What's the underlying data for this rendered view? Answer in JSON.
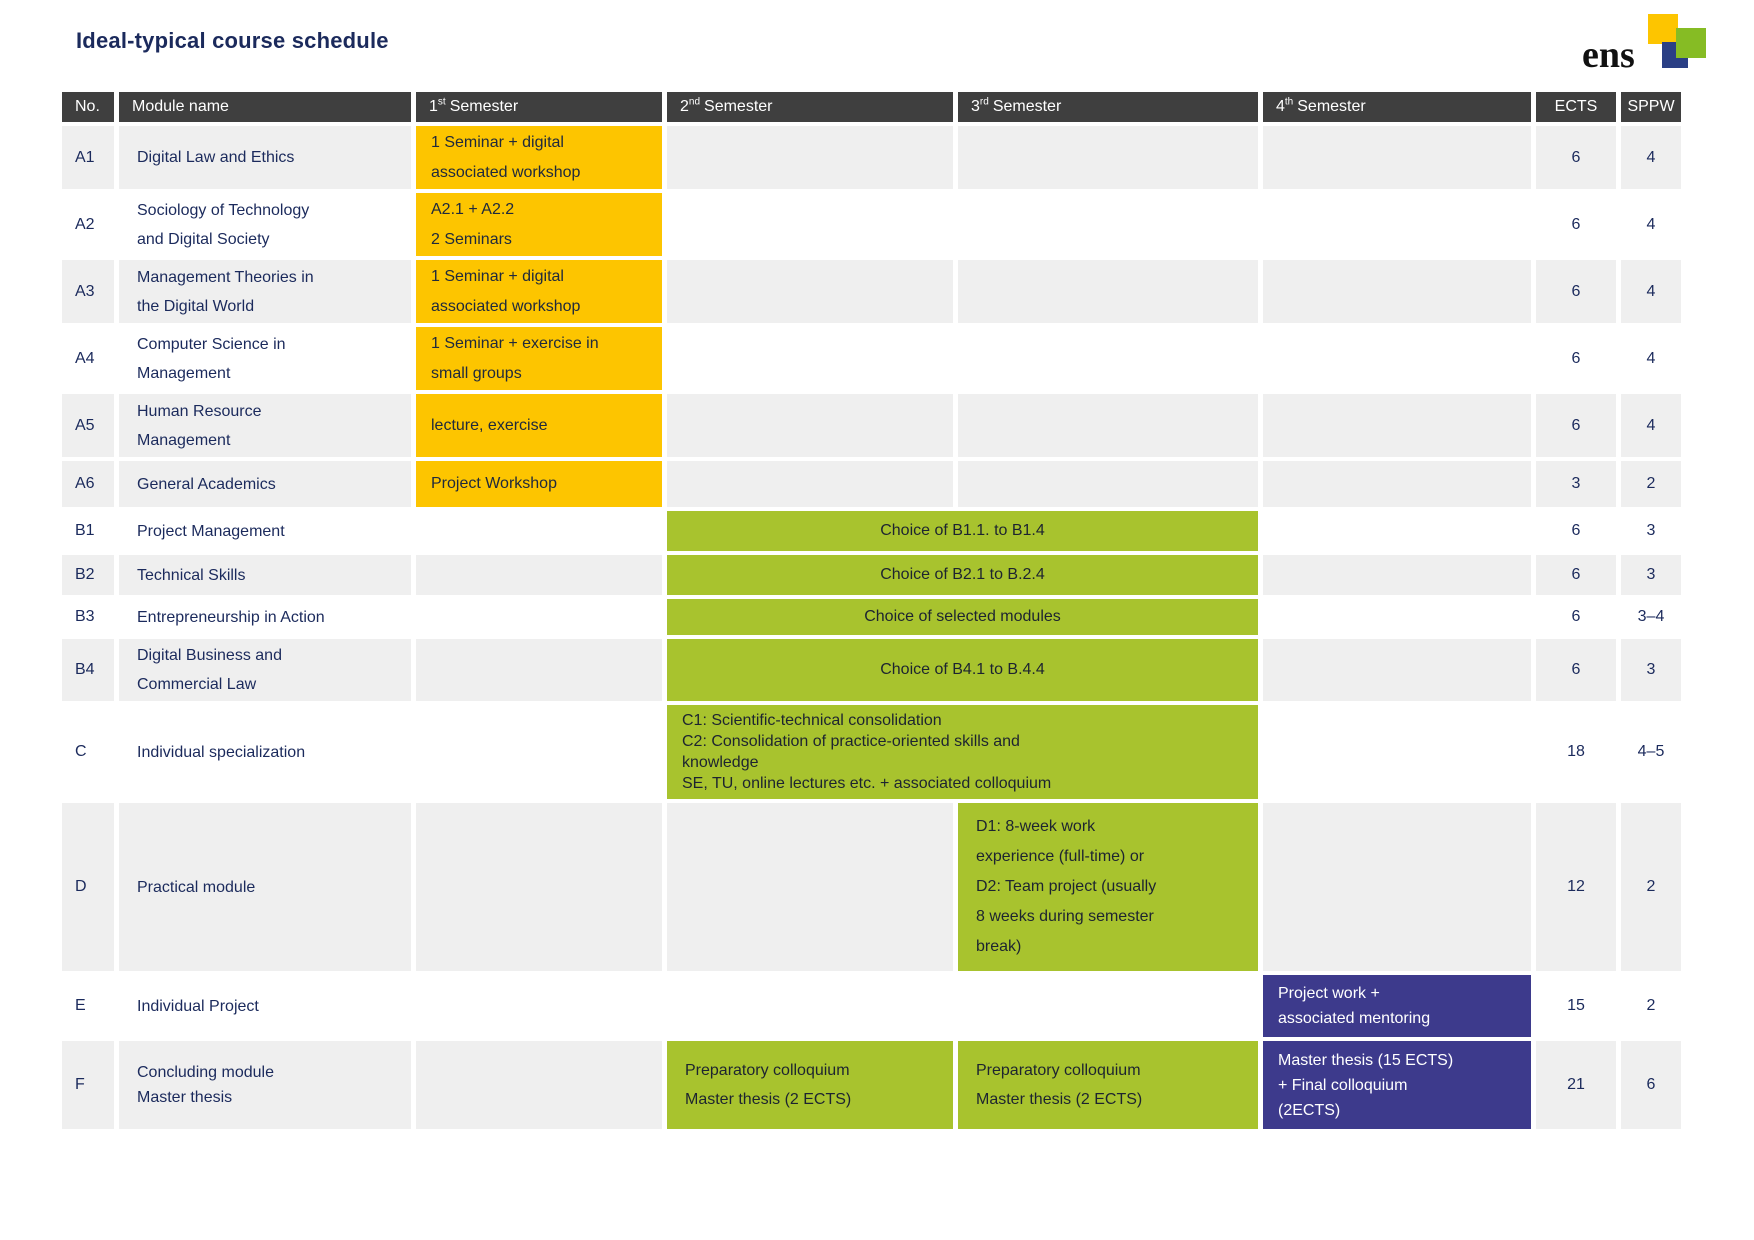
{
  "title": "Ideal-typical course schedule",
  "logo": {
    "text": "ens"
  },
  "colors": {
    "header_bg": "#3f3f3f",
    "navy": "#1b2a5c",
    "yellow": "#fdc500",
    "green": "#a8c32e",
    "purple": "#3d3a8c",
    "row_gray": "#efefef",
    "logo_yellow": "#fdc500",
    "logo_green": "#86bc24",
    "logo_navy": "#2a3f85"
  },
  "table": {
    "headers": {
      "no": "No.",
      "module": "Module name",
      "sem1": {
        "num": "1",
        "sup": "st",
        "rest": "Semester"
      },
      "sem2": {
        "num": "2",
        "sup": "nd",
        "rest": "Semester"
      },
      "sem3": {
        "num": "3",
        "sup": "rd",
        "rest": "Semester"
      },
      "sem4": {
        "num": "4",
        "sup": "th",
        "rest": "Semester"
      },
      "ects": "ECTS",
      "sppw": "SPPW"
    },
    "rows": [
      {
        "no": "A1",
        "name": "Digital Law and Ethics",
        "sem1": "1 Seminar + digital\nassociated workshop",
        "ects": "6",
        "sppw": "4"
      },
      {
        "no": "A2",
        "name": "Sociology of Technology\nand Digital Society",
        "sem1": "A2.1 + A2.2\n2 Seminars",
        "ects": "6",
        "sppw": "4"
      },
      {
        "no": "A3",
        "name": "Management Theories in\nthe Digital World",
        "sem1": "1 Seminar + digital\nassociated workshop",
        "ects": "6",
        "sppw": "4"
      },
      {
        "no": "A4",
        "name": "Computer Science in\nManagement",
        "sem1": "1 Seminar + exercise in\nsmall groups",
        "ects": "6",
        "sppw": "4"
      },
      {
        "no": "A5",
        "name": "Human Resource\nManagement",
        "sem1": "lecture, exercise",
        "ects": "6",
        "sppw": "4"
      },
      {
        "no": "A6",
        "name": "General Academics",
        "sem1": "Project Workshop",
        "ects": "3",
        "sppw": "2"
      },
      {
        "no": "B1",
        "name": "Project Management",
        "sem23": "Choice of B1.1. to B1.4",
        "ects": "6",
        "sppw": "3"
      },
      {
        "no": "B2",
        "name": "Technical Skills",
        "sem23": "Choice of B2.1 to B.2.4",
        "ects": "6",
        "sppw": "3"
      },
      {
        "no": "B3",
        "name": "Entrepreneurship in Action",
        "sem23": "Choice of selected modules",
        "ects": "6",
        "sppw": "3–4"
      },
      {
        "no": "B4",
        "name": "Digital Business and\nCommercial Law",
        "sem23": "Choice of B4.1 to B.4.4",
        "ects": "6",
        "sppw": "3"
      },
      {
        "no": "C",
        "name": "Individual specialization",
        "sem23": "C1: Scientific-technical consolidation\nC2: Consolidation of practice-oriented skills and\nknowledge\nSE, TU, online lectures etc. + associated colloquium",
        "ects": "18",
        "sppw": "4–5"
      },
      {
        "no": "D",
        "name": "Practical module",
        "sem3": "D1: 8-week work\nexperience (full-time) or\nD2: Team project (usually\n8 weeks during semester\nbreak)",
        "ects": "12",
        "sppw": "2"
      },
      {
        "no": "E",
        "name": "Individual Project",
        "sem4": "Project work +\nassociated mentoring",
        "ects": "15",
        "sppw": "2"
      },
      {
        "no": "F",
        "name": "Concluding module\nMaster thesis",
        "sem2": "Preparatory colloquium\nMaster thesis (2 ECTS)",
        "sem3": "Preparatory colloquium\nMaster thesis (2 ECTS)",
        "sem4": "Master thesis (15 ECTS)\n+ Final colloquium\n(2ECTS)",
        "ects": "21",
        "sppw": "6"
      }
    ]
  }
}
